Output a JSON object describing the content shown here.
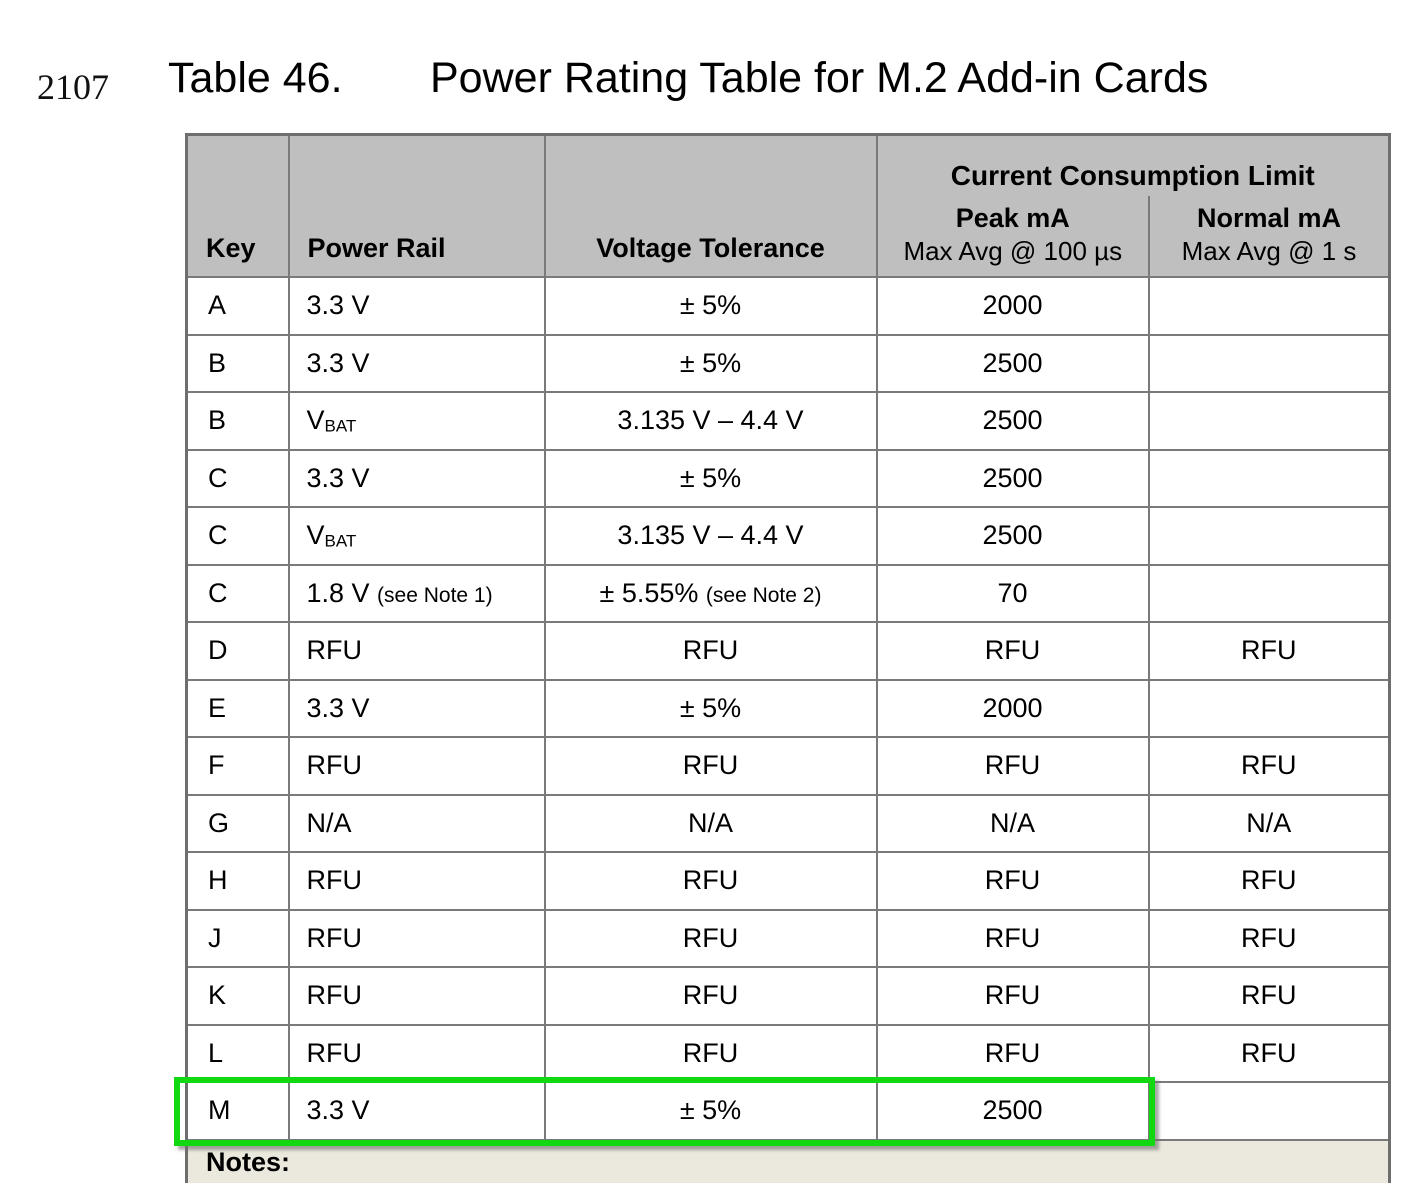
{
  "page": {
    "line_number": "2107"
  },
  "caption": {
    "label": "Table 46.",
    "title": "Power Rating Table for M.2 Add-in Cards"
  },
  "table": {
    "columns": {
      "key": "Key",
      "power_rail": "Power Rail",
      "voltage_tolerance": "Voltage Tolerance",
      "group": "Current Consumption Limit",
      "peak_title": "Peak mA",
      "peak_sub": "Max Avg @ 100 µs",
      "normal_title": "Normal mA",
      "normal_sub": "Max Avg @ 1 s"
    },
    "rows": [
      {
        "key": "A",
        "power_rail": "3.3 V",
        "voltage_tolerance": "± 5%",
        "peak_ma": "2000",
        "normal_ma": ""
      },
      {
        "key": "B",
        "power_rail": "3.3 V",
        "voltage_tolerance": "± 5%",
        "peak_ma": "2500",
        "normal_ma": ""
      },
      {
        "key": "B",
        "power_rail": "V",
        "power_rail_sub": "BAT",
        "voltage_tolerance": "3.135 V – 4.4 V",
        "peak_ma": "2500",
        "normal_ma": ""
      },
      {
        "key": "C",
        "power_rail": "3.3 V",
        "voltage_tolerance": "± 5%",
        "peak_ma": "2500",
        "normal_ma": ""
      },
      {
        "key": "C",
        "power_rail": "V",
        "power_rail_sub": "BAT",
        "voltage_tolerance": "3.135 V – 4.4 V",
        "peak_ma": "2500",
        "normal_ma": ""
      },
      {
        "key": "C",
        "power_rail": "1.8 V",
        "power_rail_note": "(see Note 1)",
        "voltage_tolerance": "± 5.55%",
        "voltage_tolerance_note": "(see Note 2)",
        "peak_ma": "70",
        "normal_ma": ""
      },
      {
        "key": "D",
        "power_rail": "RFU",
        "voltage_tolerance": "RFU",
        "peak_ma": "RFU",
        "normal_ma": "RFU"
      },
      {
        "key": "E",
        "power_rail": "3.3 V",
        "voltage_tolerance": "± 5%",
        "peak_ma": "2000",
        "normal_ma": ""
      },
      {
        "key": "F",
        "power_rail": "RFU",
        "voltage_tolerance": "RFU",
        "peak_ma": "RFU",
        "normal_ma": "RFU"
      },
      {
        "key": "G",
        "power_rail": "N/A",
        "voltage_tolerance": "N/A",
        "peak_ma": "N/A",
        "normal_ma": "N/A"
      },
      {
        "key": "H",
        "power_rail": "RFU",
        "voltage_tolerance": "RFU",
        "peak_ma": "RFU",
        "normal_ma": "RFU"
      },
      {
        "key": "J",
        "power_rail": "RFU",
        "voltage_tolerance": "RFU",
        "peak_ma": "RFU",
        "normal_ma": "RFU"
      },
      {
        "key": "K",
        "power_rail": "RFU",
        "voltage_tolerance": "RFU",
        "peak_ma": "RFU",
        "normal_ma": "RFU"
      },
      {
        "key": "L",
        "power_rail": "RFU",
        "voltage_tolerance": "RFU",
        "peak_ma": "RFU",
        "normal_ma": "RFU"
      },
      {
        "key": "M",
        "power_rail": "3.3 V",
        "voltage_tolerance": "± 5%",
        "peak_ma": "2500",
        "normal_ma": "",
        "highlighted": true
      }
    ],
    "notes_label": "Notes:"
  },
  "annotation": {
    "highlighted_row_key": "M",
    "highlight_color": "#12d812"
  },
  "colors": {
    "header_bg": "#bfbfbf",
    "border": "#7a7a7a",
    "notes_bg": "#ebe8dd",
    "highlight": "#12d812"
  }
}
